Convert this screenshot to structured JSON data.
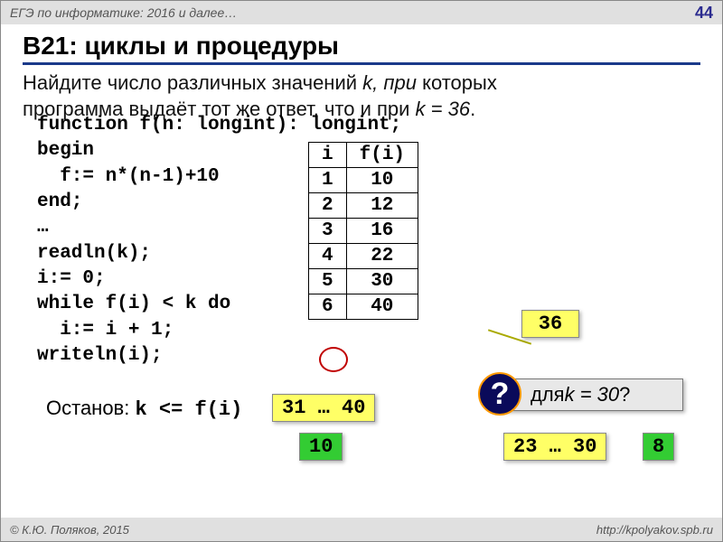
{
  "header": {
    "context": "ЕГЭ по информатике: 2016 и далее…",
    "page_number": "44"
  },
  "title": "B21: циклы и процедуры",
  "task": {
    "line1_a": "Найдите число различных значений ",
    "line1_k": "k, при",
    "line1_b": " которых",
    "line2_a": "программа выдаёт тот же ответ, что и при ",
    "line2_k": "k = 36",
    "line2_b": "."
  },
  "code": "function f(n: longint): longint;\nbegin\n  f:= n*(n-1)+10\nend;\n…\nreadln(k);\ni:= 0;\nwhile f(i) < k do\n  i:= i + 1;\nwriteln(i);",
  "table": {
    "headers": [
      "i",
      "f(i)"
    ],
    "rows": [
      [
        "1",
        "10"
      ],
      [
        "2",
        "12"
      ],
      [
        "3",
        "16"
      ],
      [
        "4",
        "22"
      ],
      [
        "5",
        "30"
      ],
      [
        "6",
        "40"
      ]
    ]
  },
  "stop": {
    "label": "Останов: ",
    "cond": "k <= f(i)"
  },
  "badges": {
    "b36": "36",
    "b31_40": "31 … 40",
    "b10": "10",
    "b23_30": "23 … 30",
    "b8": "8"
  },
  "question": {
    "mark": "?",
    "text_a": "для ",
    "text_k": "k = 30",
    "text_b": "?"
  },
  "footer": {
    "copyright": "© К.Ю. Поляков, 2015",
    "url": "http://kpolyakov.spb.ru"
  },
  "styling": {
    "badge_bg": "#ffff66",
    "badge_green_bg": "#33cc33",
    "title_underline": "#1a3a8a",
    "circle_color": "#c00000",
    "q_circle_bg": "#0a0a5a",
    "q_circle_border": "#ff9900"
  }
}
